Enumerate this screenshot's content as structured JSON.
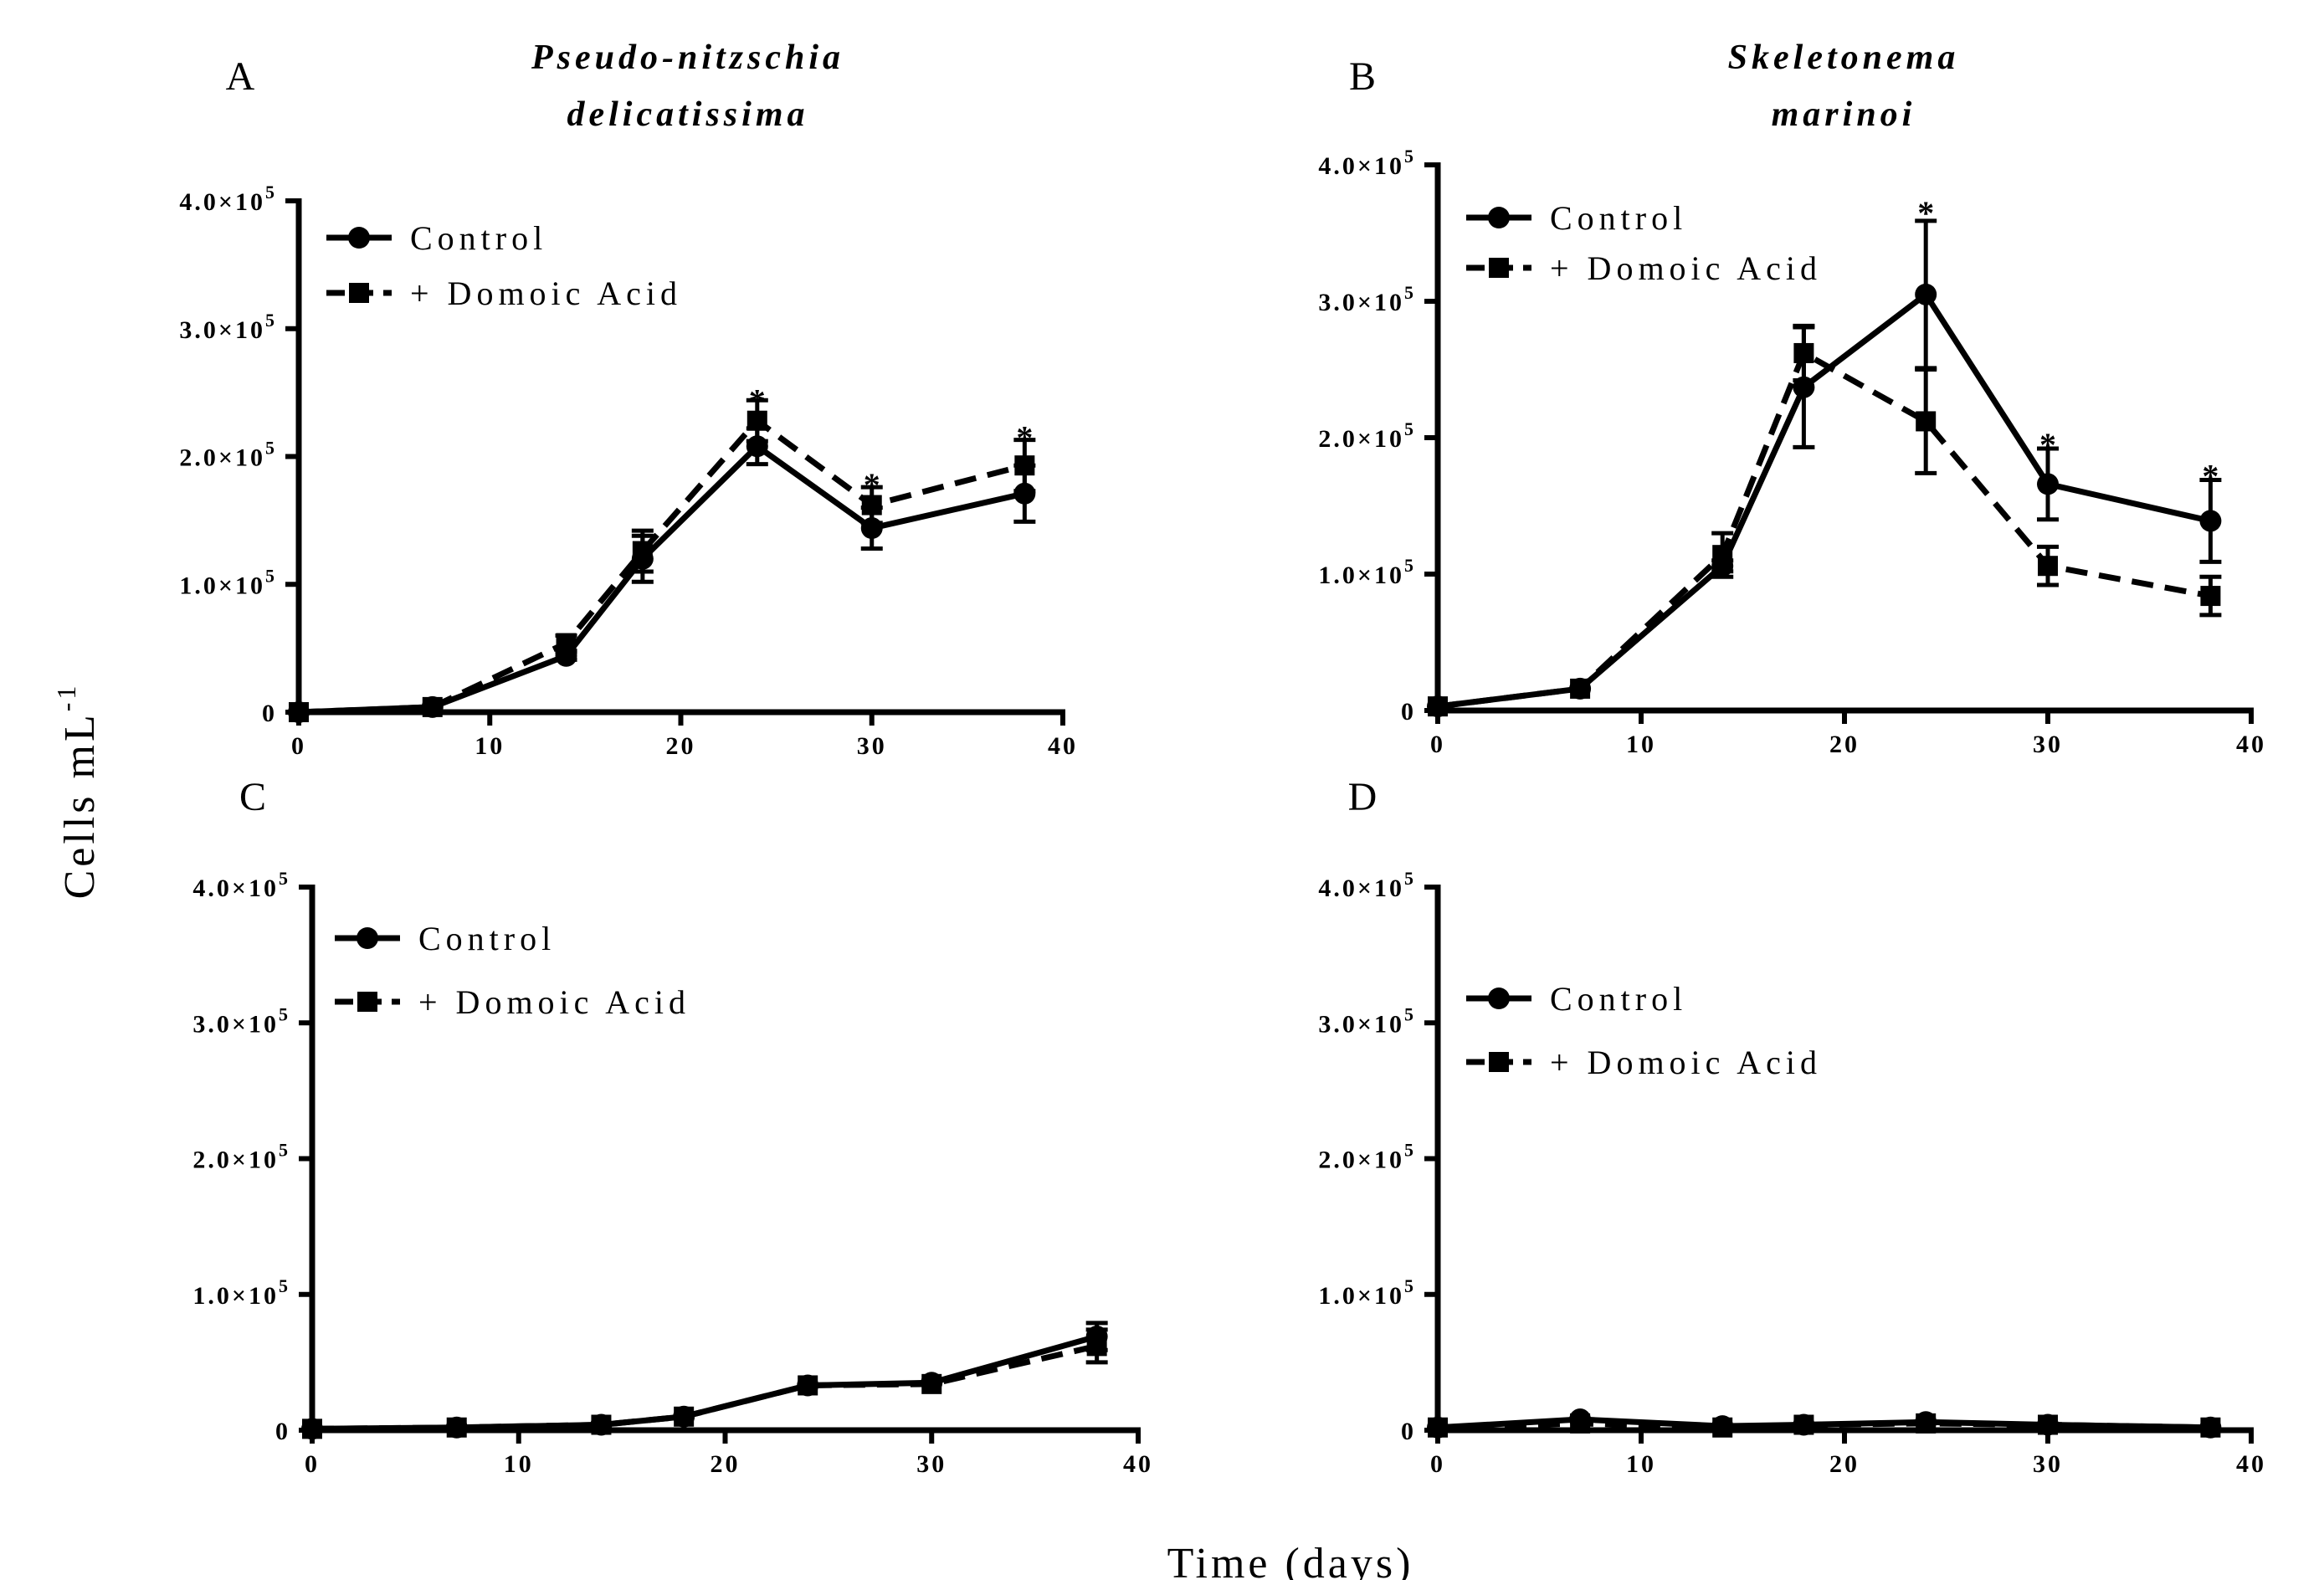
{
  "figure": {
    "ylabel": "Cells mL",
    "ylabel_sup": "-1",
    "xlabel": "Time (days)"
  },
  "legend": {
    "control": "Control",
    "treated": "+ Domoic Acid"
  },
  "colors": {
    "line": "#000000",
    "background": "#ffffff"
  },
  "chart_data": [
    {
      "panel": "A",
      "type": "line",
      "title_lines": [
        "Pseudo-nitzschia",
        "delicatissima"
      ],
      "legend_position": "top-left",
      "xlim": [
        0,
        40
      ],
      "ylim": [
        0,
        400000
      ],
      "xticks": [
        {
          "v": 0,
          "label": "0"
        },
        {
          "v": 10,
          "label": "10"
        },
        {
          "v": 20,
          "label": "20"
        },
        {
          "v": 30,
          "label": "30"
        },
        {
          "v": 40,
          "label": "40"
        }
      ],
      "yticks": [
        {
          "v": 0,
          "label": "0"
        },
        {
          "v": 100000,
          "label": "1.0×10",
          "exp": "5"
        },
        {
          "v": 200000,
          "label": "2.0×10",
          "exp": "5"
        },
        {
          "v": 300000,
          "label": "3.0×10",
          "exp": "5"
        },
        {
          "v": 400000,
          "label": "4.0×10",
          "exp": "5"
        }
      ],
      "series": [
        {
          "name": "Control",
          "marker": "circle",
          "line_style": "solid",
          "x": [
            0,
            7,
            14,
            18,
            24,
            30,
            38
          ],
          "y": [
            0,
            4000,
            44000,
            120000,
            208000,
            144000,
            171000
          ],
          "err": [
            0,
            0,
            3000,
            18000,
            14000,
            16000,
            22000
          ]
        },
        {
          "name": "+ Domoic Acid",
          "marker": "square",
          "line_style": "dashed",
          "x": [
            0,
            7,
            14,
            18,
            24,
            30,
            38
          ],
          "y": [
            0,
            4000,
            54000,
            126000,
            228000,
            162000,
            193000
          ],
          "err": [
            0,
            0,
            6000,
            16000,
            16000,
            14000,
            20000
          ]
        }
      ],
      "annotations": [
        {
          "x": 24,
          "y": 244000,
          "text": "*"
        },
        {
          "x": 30,
          "y": 178000,
          "text": "*"
        },
        {
          "x": 38,
          "y": 215000,
          "text": "*"
        }
      ]
    },
    {
      "panel": "B",
      "type": "line",
      "title_lines": [
        "Skeletonema",
        "marinoi"
      ],
      "legend_position": "top-left",
      "xlim": [
        0,
        40
      ],
      "ylim": [
        0,
        400000
      ],
      "xticks": [
        {
          "v": 0,
          "label": "0"
        },
        {
          "v": 10,
          "label": "10"
        },
        {
          "v": 20,
          "label": "20"
        },
        {
          "v": 30,
          "label": "30"
        },
        {
          "v": 40,
          "label": "40"
        }
      ],
      "yticks": [
        {
          "v": 0,
          "label": "0"
        },
        {
          "v": 100000,
          "label": "1.0×10",
          "exp": "5"
        },
        {
          "v": 200000,
          "label": "2.0×10",
          "exp": "5"
        },
        {
          "v": 300000,
          "label": "3.0×10",
          "exp": "5"
        },
        {
          "v": 400000,
          "label": "4.0×10",
          "exp": "5"
        }
      ],
      "series": [
        {
          "name": "Control",
          "marker": "circle",
          "line_style": "solid",
          "x": [
            0,
            7,
            14,
            18,
            24,
            30,
            38
          ],
          "y": [
            3000,
            16000,
            106000,
            237000,
            305000,
            166000,
            139000
          ],
          "err": [
            0,
            0,
            4000,
            44000,
            54000,
            26000,
            30000
          ]
        },
        {
          "name": "+ Domoic Acid",
          "marker": "square",
          "line_style": "dashed",
          "x": [
            0,
            7,
            14,
            18,
            24,
            30,
            38
          ],
          "y": [
            3000,
            16000,
            114000,
            262000,
            212000,
            106000,
            84000
          ],
          "err": [
            0,
            0,
            16000,
            20000,
            38000,
            14000,
            14000
          ]
        }
      ],
      "annotations": [
        {
          "x": 24,
          "y": 365000,
          "text": "*"
        },
        {
          "x": 30,
          "y": 195000,
          "text": "*"
        },
        {
          "x": 38,
          "y": 172000,
          "text": "*"
        }
      ]
    },
    {
      "panel": "C",
      "type": "line",
      "title_lines": [],
      "legend_position": "top-left",
      "xlim": [
        0,
        40
      ],
      "ylim": [
        0,
        400000
      ],
      "xticks": [
        {
          "v": 0,
          "label": "0"
        },
        {
          "v": 10,
          "label": "10"
        },
        {
          "v": 20,
          "label": "20"
        },
        {
          "v": 30,
          "label": "30"
        },
        {
          "v": 40,
          "label": "40"
        }
      ],
      "yticks": [
        {
          "v": 0,
          "label": "0"
        },
        {
          "v": 100000,
          "label": "1.0×10",
          "exp": "5"
        },
        {
          "v": 200000,
          "label": "2.0×10",
          "exp": "5"
        },
        {
          "v": 300000,
          "label": "3.0×10",
          "exp": "5"
        },
        {
          "v": 400000,
          "label": "4.0×10",
          "exp": "5"
        }
      ],
      "series": [
        {
          "name": "Control",
          "marker": "circle",
          "line_style": "solid",
          "x": [
            0,
            7,
            14,
            18,
            24,
            30,
            38
          ],
          "y": [
            1000,
            2000,
            4000,
            10000,
            33000,
            35000,
            69000
          ],
          "err": [
            0,
            0,
            0,
            0,
            0,
            0,
            10000
          ]
        },
        {
          "name": "+ Domoic Acid",
          "marker": "square",
          "line_style": "dashed",
          "x": [
            0,
            7,
            14,
            18,
            24,
            30,
            38
          ],
          "y": [
            1000,
            2000,
            4000,
            10000,
            33000,
            34000,
            62000
          ],
          "err": [
            0,
            0,
            0,
            0,
            0,
            0,
            12000
          ]
        }
      ],
      "annotations": []
    },
    {
      "panel": "D",
      "type": "line",
      "title_lines": [],
      "legend_position": "top-left",
      "xlim": [
        0,
        40
      ],
      "ylim": [
        0,
        400000
      ],
      "xticks": [
        {
          "v": 0,
          "label": "0"
        },
        {
          "v": 10,
          "label": "10"
        },
        {
          "v": 20,
          "label": "20"
        },
        {
          "v": 30,
          "label": "30"
        },
        {
          "v": 40,
          "label": "40"
        }
      ],
      "yticks": [
        {
          "v": 0,
          "label": "0"
        },
        {
          "v": 100000,
          "label": "1.0×10",
          "exp": "5"
        },
        {
          "v": 200000,
          "label": "2.0×10",
          "exp": "5"
        },
        {
          "v": 300000,
          "label": "3.0×10",
          "exp": "5"
        },
        {
          "v": 400000,
          "label": "4.0×10",
          "exp": "5"
        }
      ],
      "series": [
        {
          "name": "Control",
          "marker": "circle",
          "line_style": "solid",
          "x": [
            0,
            7,
            14,
            18,
            24,
            30,
            38
          ],
          "y": [
            2000,
            8000,
            3000,
            4000,
            6000,
            4000,
            2000
          ],
          "err": [
            0,
            0,
            0,
            0,
            0,
            0,
            0
          ]
        },
        {
          "name": "+ Domoic Acid",
          "marker": "square",
          "line_style": "dashed",
          "x": [
            0,
            7,
            14,
            18,
            24,
            30,
            38
          ],
          "y": [
            2000,
            5000,
            2000,
            4000,
            5000,
            4000,
            2000
          ],
          "err": [
            0,
            0,
            0,
            0,
            0,
            0,
            0
          ]
        }
      ],
      "annotations": []
    }
  ]
}
